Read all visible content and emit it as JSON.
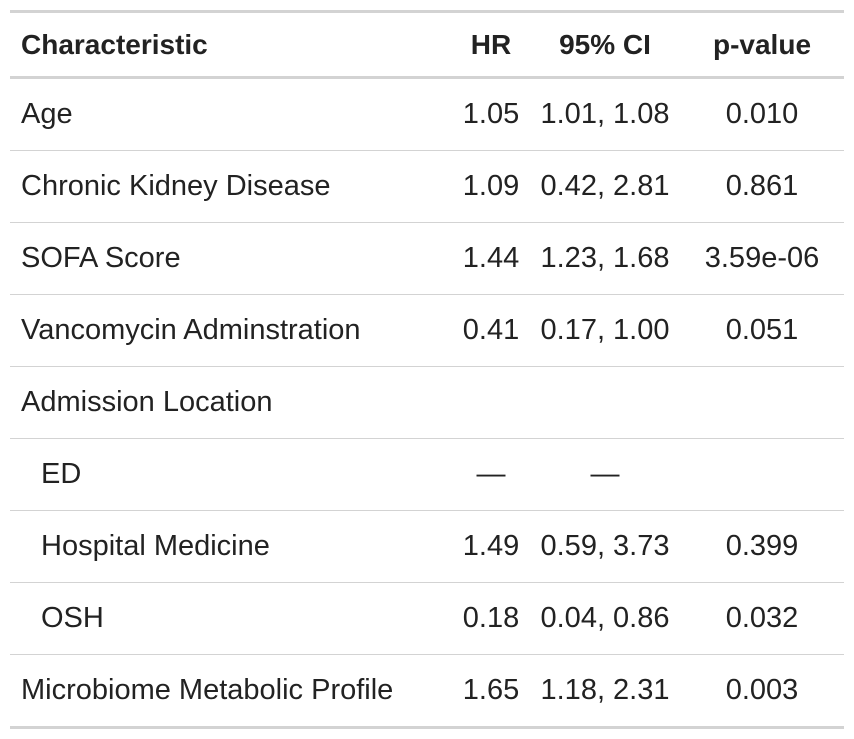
{
  "table": {
    "headers": {
      "characteristic": "Characteristic",
      "hr": "HR",
      "ci": "95% CI",
      "p": "p-value"
    },
    "rows": [
      {
        "label": "Age",
        "hr": "1.05",
        "ci": "1.01, 1.08",
        "p": "0.010",
        "indent": false
      },
      {
        "label": "Chronic Kidney Disease",
        "hr": "1.09",
        "ci": "0.42, 2.81",
        "p": "0.861",
        "indent": false
      },
      {
        "label": "SOFA Score",
        "hr": "1.44",
        "ci": "1.23, 1.68",
        "p": "3.59e-06",
        "indent": false
      },
      {
        "label": "Vancomycin Adminstration",
        "hr": "0.41",
        "ci": "0.17, 1.00",
        "p": "0.051",
        "indent": false
      },
      {
        "label": "Admission Location",
        "hr": "",
        "ci": "",
        "p": "",
        "indent": false
      },
      {
        "label": "ED",
        "hr": "—",
        "ci": "—",
        "p": "",
        "indent": true
      },
      {
        "label": "Hospital Medicine",
        "hr": "1.49",
        "ci": "0.59, 3.73",
        "p": "0.399",
        "indent": true
      },
      {
        "label": "OSH",
        "hr": "0.18",
        "ci": "0.04, 0.86",
        "p": "0.032",
        "indent": true
      },
      {
        "label": "Microbiome Metabolic Profile",
        "hr": "1.65",
        "ci": "1.18, 2.31",
        "p": "0.003",
        "indent": false
      }
    ]
  }
}
